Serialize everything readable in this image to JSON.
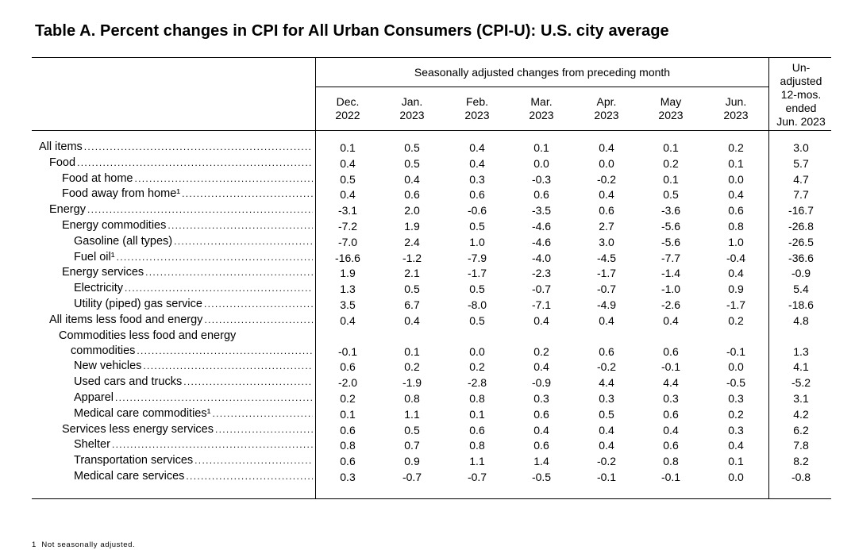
{
  "title": "Table A. Percent changes in CPI for All Urban Consumers (CPI-U): U.S. city average",
  "header": {
    "group_label": "Seasonally adjusted changes from preceding month",
    "months": [
      {
        "line1": "Dec.",
        "line2": "2022"
      },
      {
        "line1": "Jan.",
        "line2": "2023"
      },
      {
        "line1": "Feb.",
        "line2": "2023"
      },
      {
        "line1": "Mar.",
        "line2": "2023"
      },
      {
        "line1": "Apr.",
        "line2": "2023"
      },
      {
        "line1": "May",
        "line2": "2023"
      },
      {
        "line1": "Jun.",
        "line2": "2023"
      }
    ],
    "unadjusted_lines": [
      "Un-",
      "adjusted",
      "12-mos.",
      "ended",
      "Jun. 2023"
    ]
  },
  "rows": [
    {
      "label": "All items",
      "indent": 0,
      "values": [
        "0.1",
        "0.5",
        "0.4",
        "0.1",
        "0.4",
        "0.1",
        "0.2",
        "3.0"
      ]
    },
    {
      "label": "Food",
      "indent": 1,
      "values": [
        "0.4",
        "0.5",
        "0.4",
        "0.0",
        "0.0",
        "0.2",
        "0.1",
        "5.7"
      ]
    },
    {
      "label": "Food at home",
      "indent": 2,
      "values": [
        "0.5",
        "0.4",
        "0.3",
        "-0.3",
        "-0.2",
        "0.1",
        "0.0",
        "4.7"
      ]
    },
    {
      "label": "Food away from home¹",
      "indent": 2,
      "values": [
        "0.4",
        "0.6",
        "0.6",
        "0.6",
        "0.4",
        "0.5",
        "0.4",
        "7.7"
      ]
    },
    {
      "label": "Energy",
      "indent": 1,
      "values": [
        "-3.1",
        "2.0",
        "-0.6",
        "-3.5",
        "0.6",
        "-3.6",
        "0.6",
        "-16.7"
      ]
    },
    {
      "label": "Energy commodities",
      "indent": 2,
      "values": [
        "-7.2",
        "1.9",
        "0.5",
        "-4.6",
        "2.7",
        "-5.6",
        "0.8",
        "-26.8"
      ]
    },
    {
      "label": "Gasoline (all types)",
      "indent": 3,
      "values": [
        "-7.0",
        "2.4",
        "1.0",
        "-4.6",
        "3.0",
        "-5.6",
        "1.0",
        "-26.5"
      ]
    },
    {
      "label": "Fuel oil¹",
      "indent": 3,
      "values": [
        "-16.6",
        "-1.2",
        "-7.9",
        "-4.0",
        "-4.5",
        "-7.7",
        "-0.4",
        "-36.6"
      ]
    },
    {
      "label": "Energy services",
      "indent": 2,
      "values": [
        "1.9",
        "2.1",
        "-1.7",
        "-2.3",
        "-1.7",
        "-1.4",
        "0.4",
        "-0.9"
      ]
    },
    {
      "label": "Electricity",
      "indent": 3,
      "values": [
        "1.3",
        "0.5",
        "0.5",
        "-0.7",
        "-0.7",
        "-1.0",
        "0.9",
        "5.4"
      ]
    },
    {
      "label": "Utility (piped) gas service",
      "indent": 3,
      "values": [
        "3.5",
        "6.7",
        "-8.0",
        "-7.1",
        "-4.9",
        "-2.6",
        "-1.7",
        "-18.6"
      ]
    },
    {
      "label": "All items less food and energy",
      "indent": 1,
      "values": [
        "0.4",
        "0.4",
        "0.5",
        "0.4",
        "0.4",
        "0.4",
        "0.2",
        "4.8"
      ]
    },
    {
      "label": "Commodities less food and energy",
      "label2": "commodities",
      "indent": 2,
      "values": [
        "-0.1",
        "0.1",
        "0.0",
        "0.2",
        "0.6",
        "0.6",
        "-0.1",
        "1.3"
      ]
    },
    {
      "label": "New vehicles",
      "indent": 3,
      "values": [
        "0.6",
        "0.2",
        "0.2",
        "0.4",
        "-0.2",
        "-0.1",
        "0.0",
        "4.1"
      ]
    },
    {
      "label": "Used cars and trucks",
      "indent": 3,
      "values": [
        "-2.0",
        "-1.9",
        "-2.8",
        "-0.9",
        "4.4",
        "4.4",
        "-0.5",
        "-5.2"
      ]
    },
    {
      "label": "Apparel",
      "indent": 3,
      "values": [
        "0.2",
        "0.8",
        "0.8",
        "0.3",
        "0.3",
        "0.3",
        "0.3",
        "3.1"
      ]
    },
    {
      "label": "Medical care commodities¹",
      "indent": 3,
      "values": [
        "0.1",
        "1.1",
        "0.1",
        "0.6",
        "0.5",
        "0.6",
        "0.2",
        "4.2"
      ]
    },
    {
      "label": "Services less energy services",
      "indent": 2,
      "values": [
        "0.6",
        "0.5",
        "0.6",
        "0.4",
        "0.4",
        "0.4",
        "0.3",
        "6.2"
      ]
    },
    {
      "label": "Shelter",
      "indent": 3,
      "values": [
        "0.8",
        "0.7",
        "0.8",
        "0.6",
        "0.4",
        "0.6",
        "0.4",
        "7.8"
      ]
    },
    {
      "label": "Transportation services",
      "indent": 3,
      "values": [
        "0.6",
        "0.9",
        "1.1",
        "1.4",
        "-0.2",
        "0.8",
        "0.1",
        "8.2"
      ]
    },
    {
      "label": "Medical care services",
      "indent": 3,
      "values": [
        "0.3",
        "-0.7",
        "-0.7",
        "-0.5",
        "-0.1",
        "-0.1",
        "0.0",
        "-0.8"
      ]
    }
  ],
  "footnote": {
    "marker": "1",
    "text": "Not seasonally adjusted."
  }
}
